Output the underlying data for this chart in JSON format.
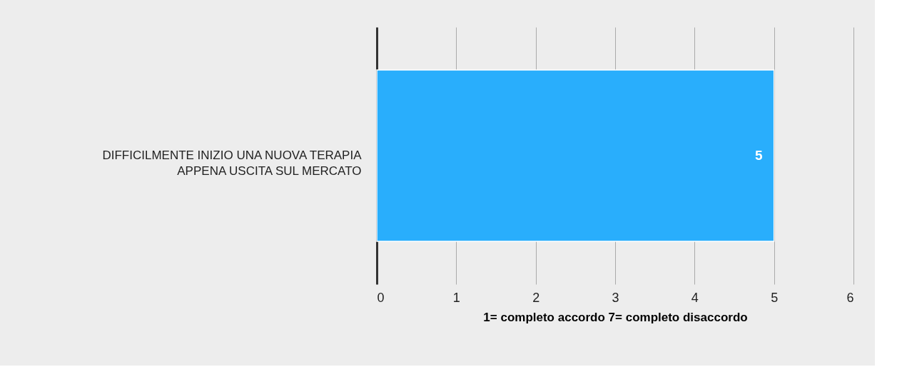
{
  "chart_data": {
    "type": "bar",
    "orientation": "horizontal",
    "categories": [
      "DIFFICILMENTE INIZIO UNA NUOVA TERAPIA\nAPPENA USCITA SUL MERCATO"
    ],
    "values": [
      5
    ],
    "color": "#29aefc",
    "xlim": [
      0,
      6
    ],
    "xticks": [
      0,
      1,
      2,
      3,
      4,
      5,
      6
    ],
    "xlabel": "1= completo accordo   7= completo disaccordo",
    "grid": "x",
    "data_labels": true
  }
}
